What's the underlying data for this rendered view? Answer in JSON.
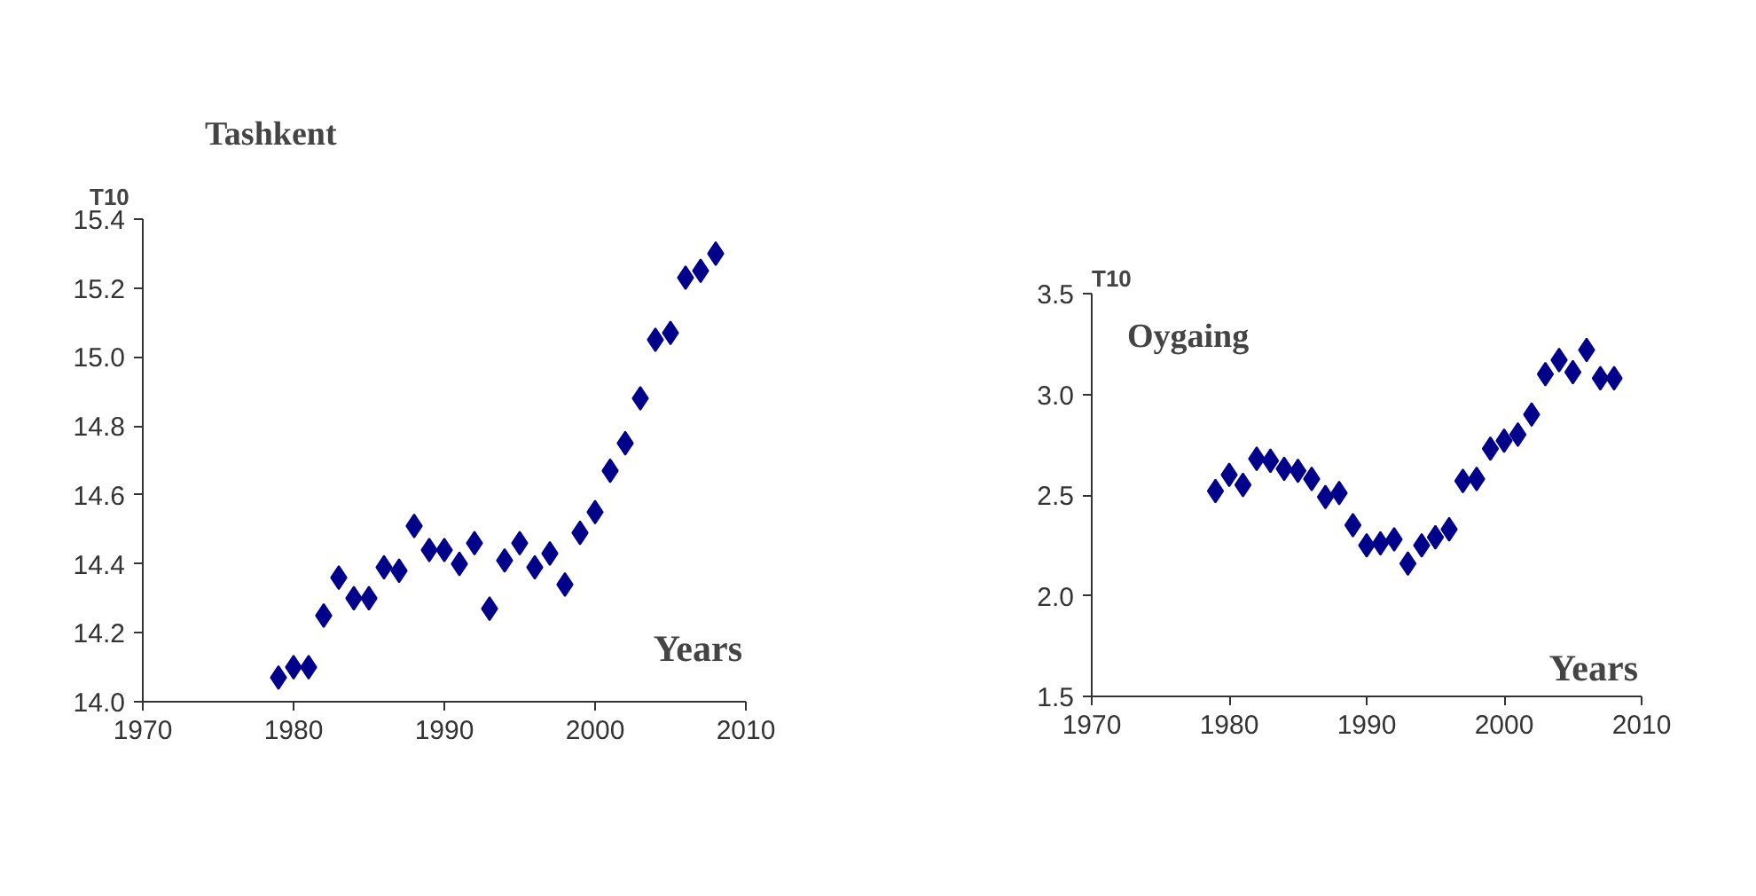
{
  "chart_data": [
    {
      "type": "scatter",
      "title": "Tashkent",
      "ylabel": "T10",
      "xlabel": "Years",
      "marker": "diamond",
      "color": "#00008b",
      "grid": false,
      "x": [
        1979,
        1980,
        1981,
        1982,
        1983,
        1984,
        1985,
        1986,
        1987,
        1988,
        1989,
        1990,
        1991,
        1992,
        1993,
        1994,
        1995,
        1996,
        1997,
        1998,
        1999,
        2000,
        2001,
        2002,
        2003,
        2004,
        2005,
        2006,
        2007,
        2008
      ],
      "values": [
        14.07,
        14.1,
        14.1,
        14.25,
        14.36,
        14.3,
        14.3,
        14.39,
        14.38,
        14.51,
        14.44,
        14.44,
        14.4,
        14.46,
        14.27,
        14.41,
        14.46,
        14.39,
        14.43,
        14.34,
        14.49,
        14.55,
        14.67,
        14.75,
        14.88,
        15.05,
        15.07,
        15.23,
        15.25,
        15.3
      ],
      "xlim": [
        1970,
        2010
      ],
      "xticks": [
        1970,
        1980,
        1990,
        2000,
        2010
      ],
      "ylim": [
        14.0,
        15.4
      ],
      "yticks": [
        {
          "value": 14.0,
          "label": "14.0"
        },
        14.2,
        14.4,
        14.6,
        14.8,
        {
          "value": 15.0,
          "label": "15.0"
        },
        15.2,
        15.4
      ]
    },
    {
      "type": "scatter",
      "title": "Oygaing",
      "ylabel": "T10",
      "xlabel": "Years",
      "marker": "diamond",
      "color": "#00008b",
      "grid": false,
      "x": [
        1979,
        1980,
        1981,
        1982,
        1983,
        1984,
        1985,
        1986,
        1987,
        1988,
        1989,
        1990,
        1991,
        1992,
        1993,
        1994,
        1995,
        1996,
        1997,
        1998,
        1999,
        2000,
        2001,
        2002,
        2003,
        2004,
        2005,
        2006,
        2007,
        2008
      ],
      "values": [
        2.52,
        2.6,
        2.55,
        2.68,
        2.67,
        2.63,
        2.62,
        2.58,
        2.49,
        2.51,
        2.35,
        2.25,
        2.26,
        2.28,
        2.16,
        2.25,
        2.29,
        2.33,
        2.57,
        2.58,
        2.73,
        2.77,
        2.8,
        2.9,
        3.1,
        3.17,
        3.11,
        3.22,
        3.08,
        3.08
      ],
      "xlim": [
        1970,
        2010
      ],
      "xticks": [
        1970,
        1980,
        1990,
        2000,
        2010
      ],
      "ylim": [
        1.5,
        3.5
      ],
      "yticks": [
        1.5,
        {
          "value": 2.0,
          "label": "2.0"
        },
        2.5,
        {
          "value": 3.0,
          "label": "3.0"
        },
        3.5
      ]
    }
  ]
}
